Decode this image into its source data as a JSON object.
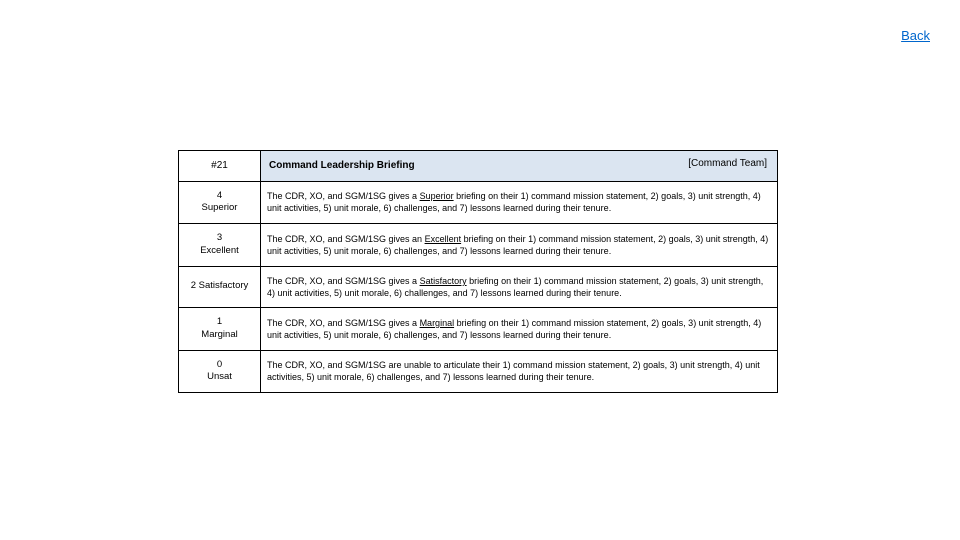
{
  "nav": {
    "back_label": "Back"
  },
  "rubric": {
    "id": "#21",
    "title": "Command Leadership Briefing",
    "owner": "[Command Team]",
    "header_bg": "#dbe5f1",
    "border_color": "#000000",
    "rows": [
      {
        "score": "4",
        "label": "Superior",
        "pre": "The CDR, XO, and SGM/1SG gives a ",
        "keyword": "Superior",
        "post": " briefing on their 1) command mission statement, 2) goals, 3) unit strength, 4) unit activities, 5) unit morale, 6) challenges, and 7) lessons learned during their tenure."
      },
      {
        "score": "3",
        "label": "Excellent",
        "pre": "The CDR, XO, and SGM/1SG gives an ",
        "keyword": "Excellent",
        "post": " briefing on their 1) command mission statement, 2) goals, 3) unit strength, 4) unit activities, 5) unit morale, 6) challenges, and 7) lessons learned during their tenure."
      },
      {
        "score": "2",
        "label": "Satisfactory",
        "inline": true,
        "pre": "The CDR, XO, and SGM/1SG gives a ",
        "keyword": "Satisfactory",
        "post": " briefing on their 1) command mission statement, 2) goals, 3) unit strength, 4) unit activities, 5) unit morale, 6) challenges, and 7) lessons learned during their tenure."
      },
      {
        "score": "1",
        "label": "Marginal",
        "pre": "The CDR, XO, and SGM/1SG gives a ",
        "keyword": "Marginal",
        "post": " briefing on their 1) command mission statement, 2) goals, 3) unit strength, 4) unit activities, 5) unit morale, 6) challenges, and 7) lessons learned during their tenure."
      },
      {
        "score": "0",
        "label": "Unsat",
        "plain": "The CDR, XO, and SGM/1SG are unable to articulate their 1) command mission statement, 2) goals, 3) unit strength, 4) unit activities, 5) unit morale, 6) challenges, and 7) lessons learned during their tenure."
      }
    ]
  }
}
